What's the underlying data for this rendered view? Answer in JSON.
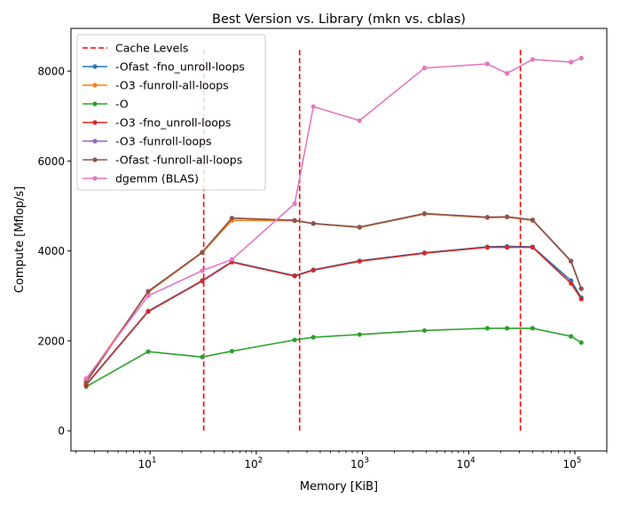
{
  "chart_data": {
    "type": "line",
    "title": "Best Version vs. Library (mkn vs. cblas)",
    "xlabel": "Memory [KiB]",
    "ylabel": "Compute [Mflop/s]",
    "xscale": "log",
    "xlim": [
      1.8,
      200000
    ],
    "ylim": [
      -450,
      8950
    ],
    "xticks": [
      {
        "value": 10,
        "base": "10",
        "exp": "1"
      },
      {
        "value": 100,
        "base": "10",
        "exp": "2"
      },
      {
        "value": 1000,
        "base": "10",
        "exp": "3"
      },
      {
        "value": 10000,
        "base": "10",
        "exp": "4"
      },
      {
        "value": 100000,
        "base": "10",
        "exp": "5"
      }
    ],
    "yticks": [
      0,
      2000,
      4000,
      6000,
      8000
    ],
    "ytick_labels": [
      "0",
      "2000",
      "4000",
      "6000",
      "8000"
    ],
    "grid": false,
    "legend_position": "top-left",
    "cache_levels": {
      "name": "Cache Levels",
      "color": "#ff0000",
      "style": "dashed",
      "x": [
        32,
        256,
        30720
      ],
      "y_range": [
        0,
        8500
      ]
    },
    "x": [
      2.5,
      9.6,
      31,
      59,
      230,
      345,
      940,
      3840,
      15000,
      23000,
      40000,
      92000,
      115000
    ],
    "series": [
      {
        "name": "-Ofast -fno_unroll-loops",
        "color": "#1f77b4",
        "values": [
          1030,
          2660,
          3340,
          3760,
          3450,
          3580,
          3780,
          3960,
          4090,
          4100,
          4090,
          3340,
          2960
        ]
      },
      {
        "name": "-O3 -funroll-all-loops",
        "color": "#ff7f0e",
        "values": [
          1140,
          3080,
          3960,
          4680,
          4670,
          4610,
          4520,
          4820,
          4740,
          4750,
          4680,
          3770,
          3160
        ]
      },
      {
        "name": "-O",
        "color": "#2ca02c",
        "values": [
          980,
          1760,
          1640,
          1770,
          2020,
          2080,
          2140,
          2230,
          2280,
          2280,
          2280,
          2100,
          1960
        ]
      },
      {
        "name": "-O3 -fno_unroll-loops",
        "color": "#d62728",
        "values": [
          1020,
          2650,
          3330,
          3750,
          3440,
          3570,
          3770,
          3950,
          4080,
          4080,
          4080,
          3280,
          2930
        ]
      },
      {
        "name": "-O3 -funroll-loops",
        "color": "#9467bd",
        "values": [
          1080,
          3100,
          3970,
          4730,
          4680,
          4610,
          4530,
          4830,
          4750,
          4760,
          4690,
          3780,
          3160
        ]
      },
      {
        "name": "-Ofast -funroll-all-loops",
        "color": "#8c564b",
        "values": [
          1080,
          3100,
          3970,
          4730,
          4680,
          4610,
          4530,
          4830,
          4750,
          4760,
          4690,
          3770,
          3160
        ]
      },
      {
        "name": "dgemm (BLAS)",
        "color": "#e377c2",
        "values": [
          1160,
          3000,
          3560,
          3810,
          5050,
          7210,
          6900,
          8070,
          8160,
          7950,
          8260,
          8200,
          8290
        ]
      }
    ]
  }
}
